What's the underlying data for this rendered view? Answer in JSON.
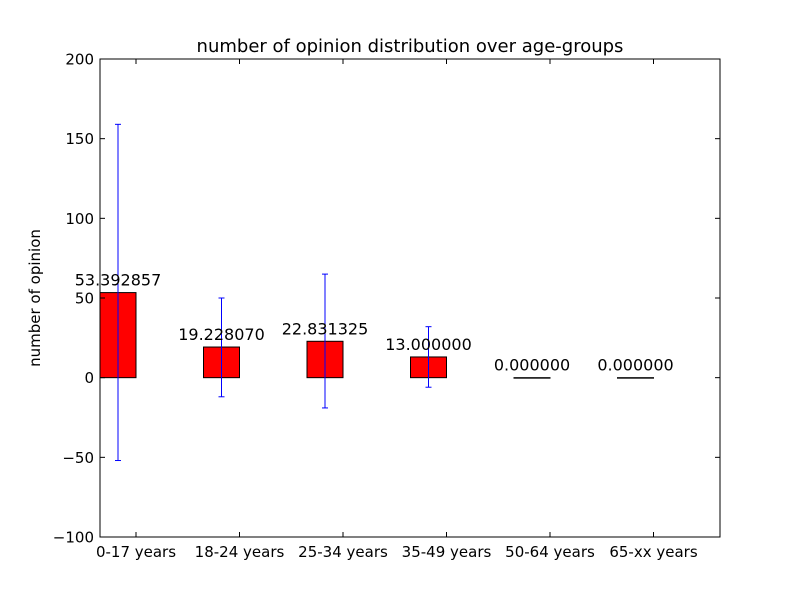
{
  "chart_data": {
    "type": "bar",
    "title": "number of opinion distribution over age-groups",
    "xlabel": "",
    "ylabel": "number of opinion",
    "ylim": [
      -100,
      200
    ],
    "yticks": [
      -100,
      -50,
      0,
      50,
      100,
      150,
      200
    ],
    "ytick_labels": [
      "−100",
      "−50",
      "0",
      "50",
      "100",
      "150",
      "200"
    ],
    "categories": [
      "0-17 years",
      "18-24 years",
      "25-34 years",
      "35-49 years",
      "50-64 years",
      "65-xx years"
    ],
    "values": [
      53.392857,
      19.22807,
      22.831325,
      13.0,
      0.0,
      0.0
    ],
    "value_labels": [
      "53.392857",
      "19.228070",
      "22.831325",
      "13.000000",
      "0.000000",
      "0.000000"
    ],
    "error_low": [
      -52,
      -12,
      -19,
      -6,
      0,
      0
    ],
    "error_high": [
      159,
      50,
      65,
      32,
      0,
      0
    ],
    "bar_color": "#ff0000",
    "error_color": "#0000ff",
    "grid": false
  }
}
